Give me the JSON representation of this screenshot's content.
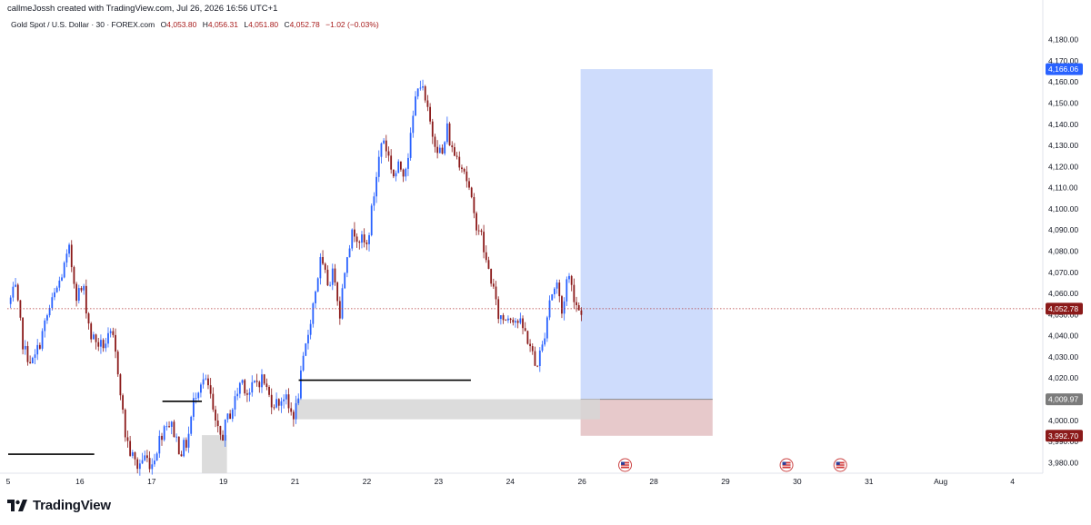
{
  "attribution": "callmeJossh created with TradingView.com, Jul 26, 2026 16:56 UTC+1",
  "header": {
    "symbol": "Gold Spot / U.S. Dollar · 30 · FOREX.com",
    "open_label": "O",
    "open": "4,053.80",
    "high_label": "H",
    "high": "4,056.31",
    "low_label": "L",
    "low": "4,051.80",
    "close_label": "C",
    "close": "4,052.78",
    "change": "−1.02 (−0.03%)"
  },
  "brand": "TradingView",
  "colors": {
    "up": "#2962ff",
    "down": "#8b1a1a",
    "profit_zone": "#c5d6fb",
    "loss_zone": "#e6c6c8",
    "gray_zone": "#d6d6d6",
    "price_line": "#b33a3a",
    "target_tag": "#2962ff",
    "entry_tag": "#7b7b7b",
    "stop_tag": "#8b1a1a",
    "current_tag": "#8b1a1a"
  },
  "chart_data": {
    "type": "candlestick",
    "ylim": [
      3975,
      4185
    ],
    "y_ticks": [
      3980,
      3990,
      4000,
      4010,
      4020,
      4030,
      4040,
      4050,
      4060,
      4070,
      4080,
      4090,
      4100,
      4110,
      4120,
      4130,
      4140,
      4150,
      4160,
      4170,
      4180
    ],
    "y_tick_labels": [
      "3,980.00",
      "3,990.00",
      "4,000.00",
      "4,010.00",
      "4,020.00",
      "4,030.00",
      "4,040.00",
      "4,050.00",
      "4,060.00",
      "4,070.00",
      "4,080.00",
      "4,090.00",
      "4,100.00",
      "4,110.00",
      "4,120.00",
      "4,130.00",
      "4,140.00",
      "4,150.00",
      "4,160.00",
      "4,170.00",
      "4,180.00"
    ],
    "x_labels": [
      {
        "label": "5",
        "day": 0
      },
      {
        "label": "16",
        "day": 1
      },
      {
        "label": "17",
        "day": 2
      },
      {
        "label": "19",
        "day": 3
      },
      {
        "label": "21",
        "day": 4
      },
      {
        "label": "22",
        "day": 5
      },
      {
        "label": "23",
        "day": 6
      },
      {
        "label": "24",
        "day": 7
      },
      {
        "label": "26",
        "day": 8
      },
      {
        "label": "28",
        "day": 9
      },
      {
        "label": "29",
        "day": 10
      },
      {
        "label": "30",
        "day": 11
      },
      {
        "label": "31",
        "day": 12
      },
      {
        "label": "Aug",
        "day": 13
      },
      {
        "label": "4",
        "day": 14
      }
    ],
    "path": [
      [
        0.0,
        4055
      ],
      [
        0.1,
        4062
      ],
      [
        0.22,
        4033
      ],
      [
        0.35,
        4027
      ],
      [
        0.45,
        4038
      ],
      [
        0.55,
        4050
      ],
      [
        0.72,
        4066
      ],
      [
        0.85,
        4080
      ],
      [
        0.95,
        4060
      ],
      [
        1.05,
        4062
      ],
      [
        1.15,
        4040
      ],
      [
        1.3,
        4035
      ],
      [
        1.45,
        4040
      ],
      [
        1.55,
        4020
      ],
      [
        1.62,
        3995
      ],
      [
        1.7,
        3985
      ],
      [
        1.8,
        3978
      ],
      [
        1.9,
        3983
      ],
      [
        2.0,
        3979
      ],
      [
        2.1,
        3990
      ],
      [
        2.2,
        4000
      ],
      [
        2.3,
        3996
      ],
      [
        2.4,
        3985
      ],
      [
        2.5,
        3990
      ],
      [
        2.6,
        4012
      ],
      [
        2.7,
        4020
      ],
      [
        2.8,
        4015
      ],
      [
        2.9,
        3995
      ],
      [
        2.98,
        3992
      ],
      [
        3.05,
        4000
      ],
      [
        3.15,
        4008
      ],
      [
        3.25,
        4020
      ],
      [
        3.35,
        4012
      ],
      [
        3.45,
        4018
      ],
      [
        3.55,
        4020
      ],
      [
        3.65,
        4010
      ],
      [
        3.75,
        4008
      ],
      [
        3.85,
        4012
      ],
      [
        3.92,
        4004
      ],
      [
        4.0,
        4003
      ],
      [
        4.07,
        4018
      ],
      [
        4.15,
        4035
      ],
      [
        4.25,
        4055
      ],
      [
        4.35,
        4075
      ],
      [
        4.45,
        4065
      ],
      [
        4.55,
        4070
      ],
      [
        4.62,
        4050
      ],
      [
        4.72,
        4080
      ],
      [
        4.82,
        4090
      ],
      [
        4.92,
        4085
      ],
      [
        5.0,
        4082
      ],
      [
        5.08,
        4102
      ],
      [
        5.15,
        4120
      ],
      [
        5.22,
        4135
      ],
      [
        5.3,
        4125
      ],
      [
        5.38,
        4115
      ],
      [
        5.45,
        4120
      ],
      [
        5.52,
        4118
      ],
      [
        5.6,
        4130
      ],
      [
        5.65,
        4145
      ],
      [
        5.72,
        4162
      ],
      [
        5.78,
        4155
      ],
      [
        5.85,
        4145
      ],
      [
        5.92,
        4135
      ],
      [
        5.98,
        4130
      ],
      [
        6.05,
        4125
      ],
      [
        6.12,
        4138
      ],
      [
        6.18,
        4128
      ],
      [
        6.25,
        4125
      ],
      [
        6.35,
        4120
      ],
      [
        6.42,
        4110
      ],
      [
        6.5,
        4095
      ],
      [
        6.58,
        4090
      ],
      [
        6.66,
        4075
      ],
      [
        6.75,
        4065
      ],
      [
        6.82,
        4050
      ],
      [
        6.9,
        4048
      ],
      [
        7.0,
        4050
      ],
      [
        7.1,
        4047
      ],
      [
        7.2,
        4042
      ],
      [
        7.28,
        4035
      ],
      [
        7.35,
        4025
      ],
      [
        7.45,
        4035
      ],
      [
        7.55,
        4058
      ],
      [
        7.65,
        4065
      ],
      [
        7.72,
        4050
      ],
      [
        7.8,
        4070
      ],
      [
        7.88,
        4060
      ],
      [
        7.95,
        4052
      ],
      [
        8.0,
        4053
      ]
    ],
    "current_price": 4052.78,
    "current_price_label": "4,052.78",
    "position": {
      "type": "long",
      "day_start": 7.98,
      "day_end": 9.82,
      "target": 4166.06,
      "target_label": "4,166.06",
      "entry": 4009.97,
      "entry_label": "4,009.97",
      "stop": 3992.7,
      "stop_label": "3,992.70"
    },
    "gray_zones": [
      {
        "day_start": 2.7,
        "day_end": 3.05,
        "top": 3993,
        "bottom": 3975
      },
      {
        "day_start": 4.0,
        "day_end": 8.25,
        "top": 4010,
        "bottom": 4000.5
      }
    ],
    "horizontal_lines": [
      {
        "day_start": 0.0,
        "day_end": 1.2,
        "price": 3984
      },
      {
        "day_start": 2.15,
        "day_end": 2.7,
        "price": 4009
      },
      {
        "day_start": 4.05,
        "day_end": 6.45,
        "price": 4019
      }
    ],
    "event_markers": [
      8.6,
      10.85,
      11.6
    ],
    "event_marker_name": "us-flag-icon"
  }
}
